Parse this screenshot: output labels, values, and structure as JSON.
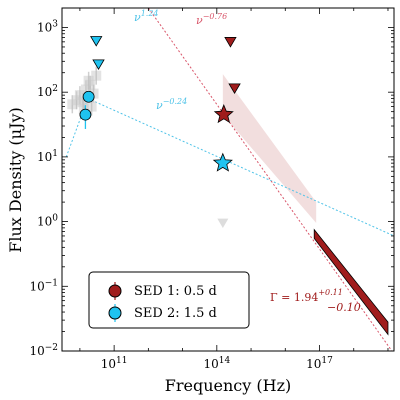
{
  "chart_data": {
    "type": "scatter",
    "xlabel": "Frequency (Hz)",
    "ylabel": "Flux Density (μJy)",
    "xscale": "log",
    "yscale": "log",
    "xlim": [
      3000000000.0,
      1.5e+19
    ],
    "ylim": [
      0.01,
      2000
    ],
    "x_ticks": [
      {
        "value": 100000000000.0,
        "base": "10",
        "exp": "11"
      },
      {
        "value": 100000000000000.0,
        "base": "10",
        "exp": "14"
      },
      {
        "value": 1e+17,
        "base": "10",
        "exp": "17"
      }
    ],
    "y_ticks": [
      {
        "value": 0.01,
        "base": "10",
        "exp": "−2"
      },
      {
        "value": 0.1,
        "base": "10",
        "exp": "−1"
      },
      {
        "value": 1,
        "base": "10",
        "exp": "0"
      },
      {
        "value": 10,
        "base": "10",
        "exp": "1"
      },
      {
        "value": 100,
        "base": "10",
        "exp": "2"
      },
      {
        "value": 1000,
        "base": "10",
        "exp": "3"
      }
    ],
    "legend": {
      "placement": "bottom-left",
      "entries": [
        {
          "label": "SED 1: 0.5 d",
          "color": "#a01c1c"
        },
        {
          "label": "SED 2: 1.5 d",
          "color": "#1fc3f0"
        }
      ]
    },
    "series": [
      {
        "name": "SED 1: 0.5 d",
        "color": "#a01c1c",
        "detections": [
          {
            "x": 160000000000000.0,
            "y": 45,
            "marker": "star"
          }
        ],
        "upper_limits": [
          {
            "x": 250000000000000.0,
            "y": 600
          },
          {
            "x": 330000000000000.0,
            "y": 115
          }
        ],
        "xray_band": {
          "x_range": [
            7e+16,
            1e+19
          ],
          "y_start": [
            0.75,
            0.55
          ],
          "y_end": [
            0.028,
            0.018
          ]
        }
      },
      {
        "name": "SED 2: 1.5 d",
        "color": "#1fc3f0",
        "detections": [
          {
            "x": 14500000000.0,
            "y": 45,
            "yerr": 18,
            "marker": "circle"
          },
          {
            "x": 18000000000.0,
            "y": 85,
            "yerr": 10,
            "marker": "circle"
          },
          {
            "x": 150000000000000.0,
            "y": 8,
            "marker": "star"
          }
        ],
        "upper_limits": [
          {
            "x": 30000000000.0,
            "y": 620
          },
          {
            "x": 35000000000.0,
            "y": 270
          }
        ]
      }
    ],
    "grey_points": [
      {
        "x": 6000000000.0,
        "y": 65
      },
      {
        "x": 8000000000.0,
        "y": 75
      },
      {
        "x": 10000000000.0,
        "y": 90
      },
      {
        "x": 12000000000.0,
        "y": 70
      },
      {
        "x": 15000000000.0,
        "y": 110
      },
      {
        "x": 20000000000.0,
        "y": 130
      },
      {
        "x": 25000000000.0,
        "y": 95
      },
      {
        "x": 18000000000.0,
        "y": 150
      },
      {
        "x": 22000000000.0,
        "y": 60
      },
      {
        "x": 30000000000.0,
        "y": 180
      },
      {
        "x": 13000000000.0,
        "y": 55
      }
    ],
    "grey_upper_limit": {
      "x": 150000000000000.0,
      "y": 0.95
    },
    "model_lines": [
      {
        "label": "ν",
        "exp": "1.24",
        "color": "#4fc3e8",
        "points": [
          [
            4000000000.0,
            10
          ],
          [
            17000000000.0,
            80
          ]
        ]
      },
      {
        "label": "ν",
        "exp": "−0.24",
        "color": "#4fc3e8",
        "points": [
          [
            17000000000.0,
            80
          ],
          [
            1.5e+19,
            0.6
          ]
        ]
      },
      {
        "label": "ν",
        "exp": "−0.76",
        "color": "#d9576b",
        "points": [
          [
            1000000000000.0,
            2000
          ],
          [
            1.5e+19,
            0.009
          ]
        ]
      }
    ],
    "opt_xray_wedge": {
      "color": "#f2dede",
      "points": [
        [
          150000000000000.0,
          190
        ],
        [
          150000000000000.0,
          45
        ],
        [
          8e+16,
          0.95
        ],
        [
          8e+16,
          2.0
        ]
      ]
    },
    "gamma_annotation": {
      "text": "Γ = 1.94",
      "sup": "+0.11",
      "sub": "−0.10",
      "color": "#a01c1c"
    }
  },
  "legend_colors": {
    "sed1": "#a01c1c",
    "sed2": "#1fc3f0",
    "grey": "#bbbbbb"
  }
}
